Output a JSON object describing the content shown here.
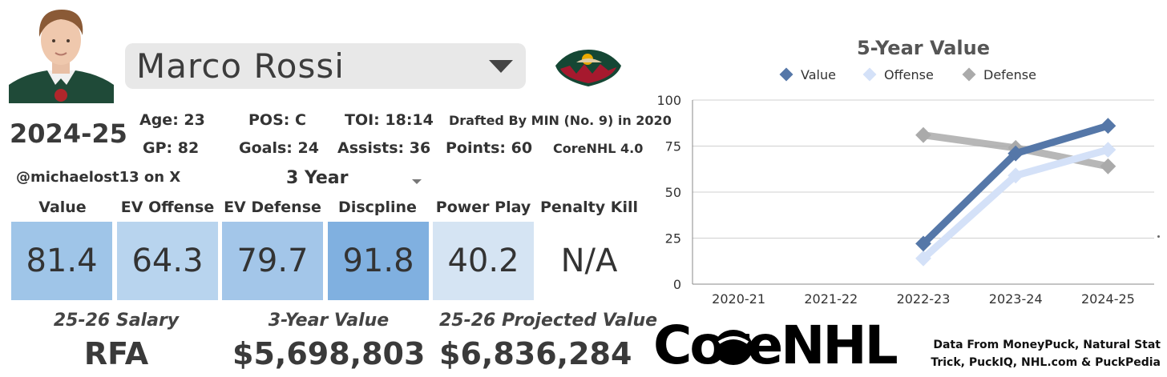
{
  "player": {
    "name": "Marco Rossi",
    "season": "2024-25",
    "stats": {
      "age": "Age: 23",
      "pos": "POS: C",
      "toi": "TOI: 18:14",
      "drafted": "Drafted By MIN (No. 9) in 2020",
      "gp": "GP: 82",
      "goals": "Goals: 24",
      "assists": "Assists: 36",
      "points": "Points: 60",
      "rating": "CoreNHL 4.0"
    }
  },
  "icons": {
    "avatar": "player-headshot-icon",
    "team": "minnesota-wild-logo-icon",
    "caret": "chevron-down-icon"
  },
  "handle": "@michaelost13 on X",
  "period": "3 Year",
  "metrics": [
    {
      "label": "Value",
      "value": "81.4",
      "color": "#9fc5e8"
    },
    {
      "label": "EV Offense",
      "value": "64.3",
      "color": "#b8d4ee"
    },
    {
      "label": "EV Defense",
      "value": "79.7",
      "color": "#a3c6e9"
    },
    {
      "label": "Discpline",
      "value": "91.8",
      "color": "#80b0e0"
    },
    {
      "label": "Power Play",
      "value": "40.2",
      "color": "#d5e4f3"
    },
    {
      "label": "Penalty Kill",
      "value": "N/A",
      "color": "#ffffff"
    }
  ],
  "financials": [
    {
      "label": "25-26 Salary",
      "value": "RFA"
    },
    {
      "label": "3-Year Value",
      "value": "$5,698,803"
    },
    {
      "label": "25-26 Projected Value",
      "value": "$6,836,284"
    }
  ],
  "brand": {
    "wordmark": "CoreNHL"
  },
  "sources": {
    "line1": "Data From MoneyPuck, Natural Stat",
    "line2": "Trick, PuckIQ, NHL.com & PuckPedia"
  },
  "chart_data": {
    "type": "line",
    "title": "5-Year Value",
    "categories": [
      "2020-21",
      "2021-22",
      "2022-23",
      "2023-24",
      "2024-25"
    ],
    "series": [
      {
        "name": "Value",
        "values": [
          null,
          null,
          22,
          71,
          86
        ],
        "color": "#5577a8"
      },
      {
        "name": "Offense",
        "values": [
          null,
          null,
          14,
          59,
          73
        ],
        "color": "#d4e1f8"
      },
      {
        "name": "Defense",
        "values": [
          null,
          null,
          81,
          74,
          64
        ],
        "color": "#aaaaaa"
      }
    ],
    "yticks": [
      0,
      25,
      50,
      75,
      100
    ],
    "ylim": [
      0,
      100
    ],
    "grid": true,
    "legend": "top"
  }
}
